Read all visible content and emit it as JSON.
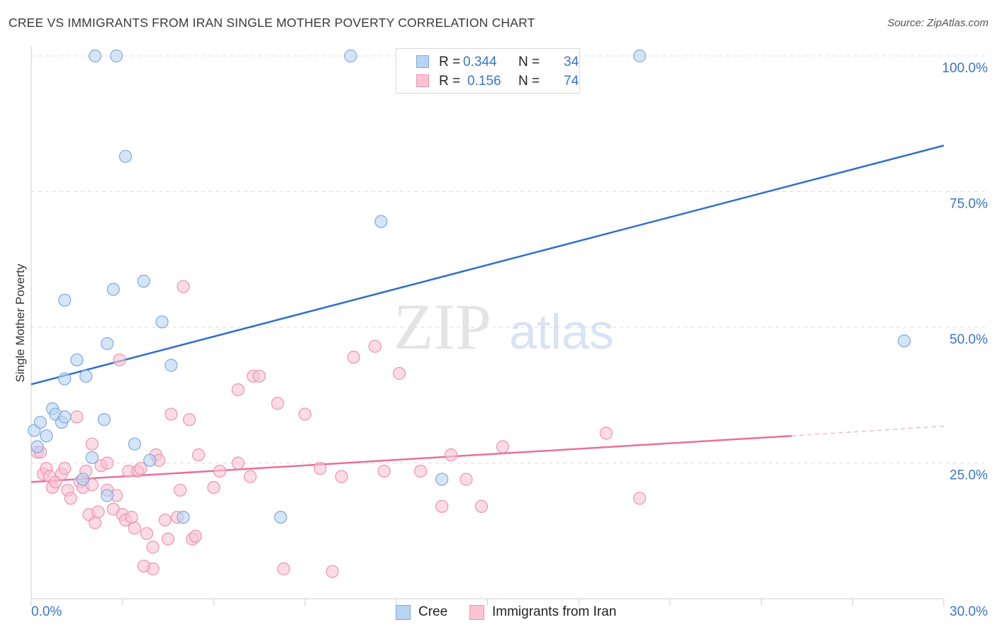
{
  "header": {
    "title": "CREE VS IMMIGRANTS FROM IRAN SINGLE MOTHER POVERTY CORRELATION CHART",
    "source": "Source: ZipAtlas.com"
  },
  "legend": {
    "rows": [
      {
        "r_label": "R =",
        "r_value": "0.344",
        "n_label": "N =",
        "n_value": "34"
      },
      {
        "r_label": "R =",
        "r_value": "0.156",
        "n_label": "N =",
        "n_value": "74"
      }
    ]
  },
  "colors": {
    "cree_fill": "#b9d3f3",
    "cree_stroke": "#7ea9de",
    "cree_line": "#2e6fcc",
    "iran_fill": "#f9c3d3",
    "iran_stroke": "#ee93ae",
    "iran_line": "#e8709a",
    "tick_label": "#3a75c4",
    "grid": "#dcdcdc"
  },
  "chart_data": {
    "type": "scatter",
    "title": "CREE VS IMMIGRANTS FROM IRAN SINGLE MOTHER POVERTY CORRELATION CHART",
    "xlabel": "",
    "ylabel": "Single Mother Poverty",
    "xlim": [
      0,
      30
    ],
    "ylim": [
      0,
      100
    ],
    "x_tick_labels": [
      "0.0%",
      "30.0%"
    ],
    "y_tick_labels": [
      "25.0%",
      "50.0%",
      "75.0%",
      "100.0%"
    ],
    "y_ticks": [
      25,
      50,
      75,
      100
    ],
    "grid": true,
    "legend_position": "top-center and bottom",
    "watermark": "ZIPatlas",
    "series": [
      {
        "name": "Cree",
        "r": 0.344,
        "n": 34,
        "trend": {
          "x": [
            0,
            30
          ],
          "y": [
            39.5,
            83.5
          ]
        },
        "points": [
          [
            0.1,
            31
          ],
          [
            0.3,
            32.5
          ],
          [
            0.5,
            30
          ],
          [
            0.2,
            28
          ],
          [
            0.7,
            35
          ],
          [
            0.8,
            34
          ],
          [
            1.0,
            32.5
          ],
          [
            1.1,
            33.5
          ],
          [
            1.1,
            55
          ],
          [
            1.5,
            44
          ],
          [
            1.1,
            40.5
          ],
          [
            1.8,
            41
          ],
          [
            2.0,
            26
          ],
          [
            1.7,
            22
          ],
          [
            2.5,
            47
          ],
          [
            2.7,
            57
          ],
          [
            2.4,
            33
          ],
          [
            2.5,
            19
          ],
          [
            3.7,
            58.5
          ],
          [
            3.4,
            28.5
          ],
          [
            3.9,
            25.5
          ],
          [
            4.3,
            51
          ],
          [
            4.6,
            43
          ],
          [
            5.0,
            15
          ],
          [
            8.2,
            15
          ],
          [
            11.5,
            69.5
          ],
          [
            13.5,
            22
          ],
          [
            2.1,
            100
          ],
          [
            2.8,
            100
          ],
          [
            3.1,
            81.5
          ],
          [
            10.5,
            100
          ],
          [
            14.2,
            100
          ],
          [
            20.0,
            100
          ],
          [
            28.7,
            47.5
          ]
        ]
      },
      {
        "name": "Immigrants from Iran",
        "r": 0.156,
        "n": 74,
        "trend": {
          "x": [
            0,
            25
          ],
          "y": [
            21.5,
            30
          ]
        },
        "trend_dashed": {
          "x": [
            25,
            30
          ],
          "y": [
            30,
            31.8
          ]
        },
        "points": [
          [
            0.2,
            27
          ],
          [
            0.3,
            27
          ],
          [
            0.4,
            23
          ],
          [
            0.5,
            24
          ],
          [
            0.6,
            22.5
          ],
          [
            0.7,
            20.5
          ],
          [
            0.8,
            21.5
          ],
          [
            1.0,
            23
          ],
          [
            1.1,
            24
          ],
          [
            1.2,
            20
          ],
          [
            1.3,
            18.5
          ],
          [
            1.5,
            33.5
          ],
          [
            1.6,
            21.5
          ],
          [
            1.7,
            20.5
          ],
          [
            1.8,
            23.5
          ],
          [
            1.9,
            15.5
          ],
          [
            2.0,
            21
          ],
          [
            2.0,
            28.5
          ],
          [
            2.1,
            14
          ],
          [
            2.2,
            16
          ],
          [
            2.3,
            24.5
          ],
          [
            2.5,
            25
          ],
          [
            2.5,
            20
          ],
          [
            2.7,
            16.5
          ],
          [
            2.8,
            19
          ],
          [
            2.9,
            44
          ],
          [
            3.0,
            15.5
          ],
          [
            3.1,
            14.5
          ],
          [
            3.2,
            23.5
          ],
          [
            3.3,
            15
          ],
          [
            3.4,
            13
          ],
          [
            3.5,
            23.5
          ],
          [
            3.6,
            24
          ],
          [
            3.8,
            12
          ],
          [
            4.0,
            5.5
          ],
          [
            4.0,
            9.5
          ],
          [
            4.1,
            26.5
          ],
          [
            4.2,
            25.5
          ],
          [
            4.4,
            14.5
          ],
          [
            4.5,
            11
          ],
          [
            4.6,
            34
          ],
          [
            4.8,
            15
          ],
          [
            4.9,
            20
          ],
          [
            5.0,
            57.5
          ],
          [
            5.2,
            33
          ],
          [
            5.3,
            11
          ],
          [
            5.4,
            11.5
          ],
          [
            5.5,
            26.5
          ],
          [
            6.2,
            23.5
          ],
          [
            6.8,
            25
          ],
          [
            6.8,
            38.5
          ],
          [
            7.2,
            22.5
          ],
          [
            7.3,
            41
          ],
          [
            7.5,
            41
          ],
          [
            8.1,
            36
          ],
          [
            8.3,
            5.5
          ],
          [
            9.0,
            34
          ],
          [
            9.5,
            24
          ],
          [
            9.9,
            5
          ],
          [
            10.2,
            22.5
          ],
          [
            10.6,
            44.5
          ],
          [
            11.3,
            46.5
          ],
          [
            11.6,
            23.5
          ],
          [
            12.1,
            41.5
          ],
          [
            12.8,
            23.5
          ],
          [
            13.5,
            17
          ],
          [
            13.8,
            26.5
          ],
          [
            14.3,
            22
          ],
          [
            14.8,
            17
          ],
          [
            15.5,
            28
          ],
          [
            18.9,
            30.5
          ],
          [
            20.0,
            18.5
          ],
          [
            6.0,
            20.5
          ],
          [
            3.7,
            6
          ]
        ]
      }
    ]
  },
  "bottom_legend": [
    {
      "label": "Cree"
    },
    {
      "label": "Immigrants from Iran"
    }
  ]
}
